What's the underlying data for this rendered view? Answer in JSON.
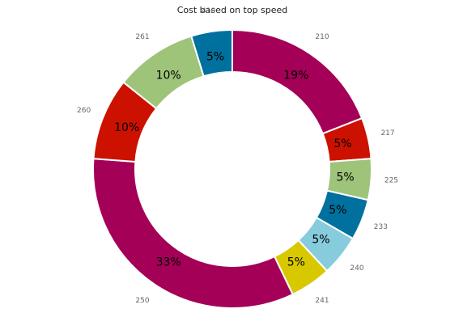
{
  "chart_data": {
    "type": "pie",
    "variant": "donut",
    "title": "Cost based on top speed",
    "slices": [
      {
        "label": "210",
        "percent": 19,
        "color": "#a40057"
      },
      {
        "label": "217",
        "percent": 5,
        "color": "#cc1100"
      },
      {
        "label": "225",
        "percent": 5,
        "color": "#9ec47a"
      },
      {
        "label": "233",
        "percent": 5,
        "color": "#00719f"
      },
      {
        "label": "240",
        "percent": 5,
        "color": "#86ccdc"
      },
      {
        "label": "241",
        "percent": 5,
        "color": "#d8c800"
      },
      {
        "label": "250",
        "percent": 33,
        "color": "#a40057"
      },
      {
        "label": "260",
        "percent": 10,
        "color": "#cc1100"
      },
      {
        "label": "261",
        "percent": 10,
        "color": "#9ec47a"
      },
      {
        "label": "410",
        "percent": 5,
        "color": "#00719f"
      }
    ],
    "slice_values": [
      2,
      0.5,
      0.5,
      0.5,
      0.5,
      0.5,
      3.5,
      1,
      1,
      0.5
    ],
    "start": "12 o'clock",
    "direction": "clockwise"
  }
}
